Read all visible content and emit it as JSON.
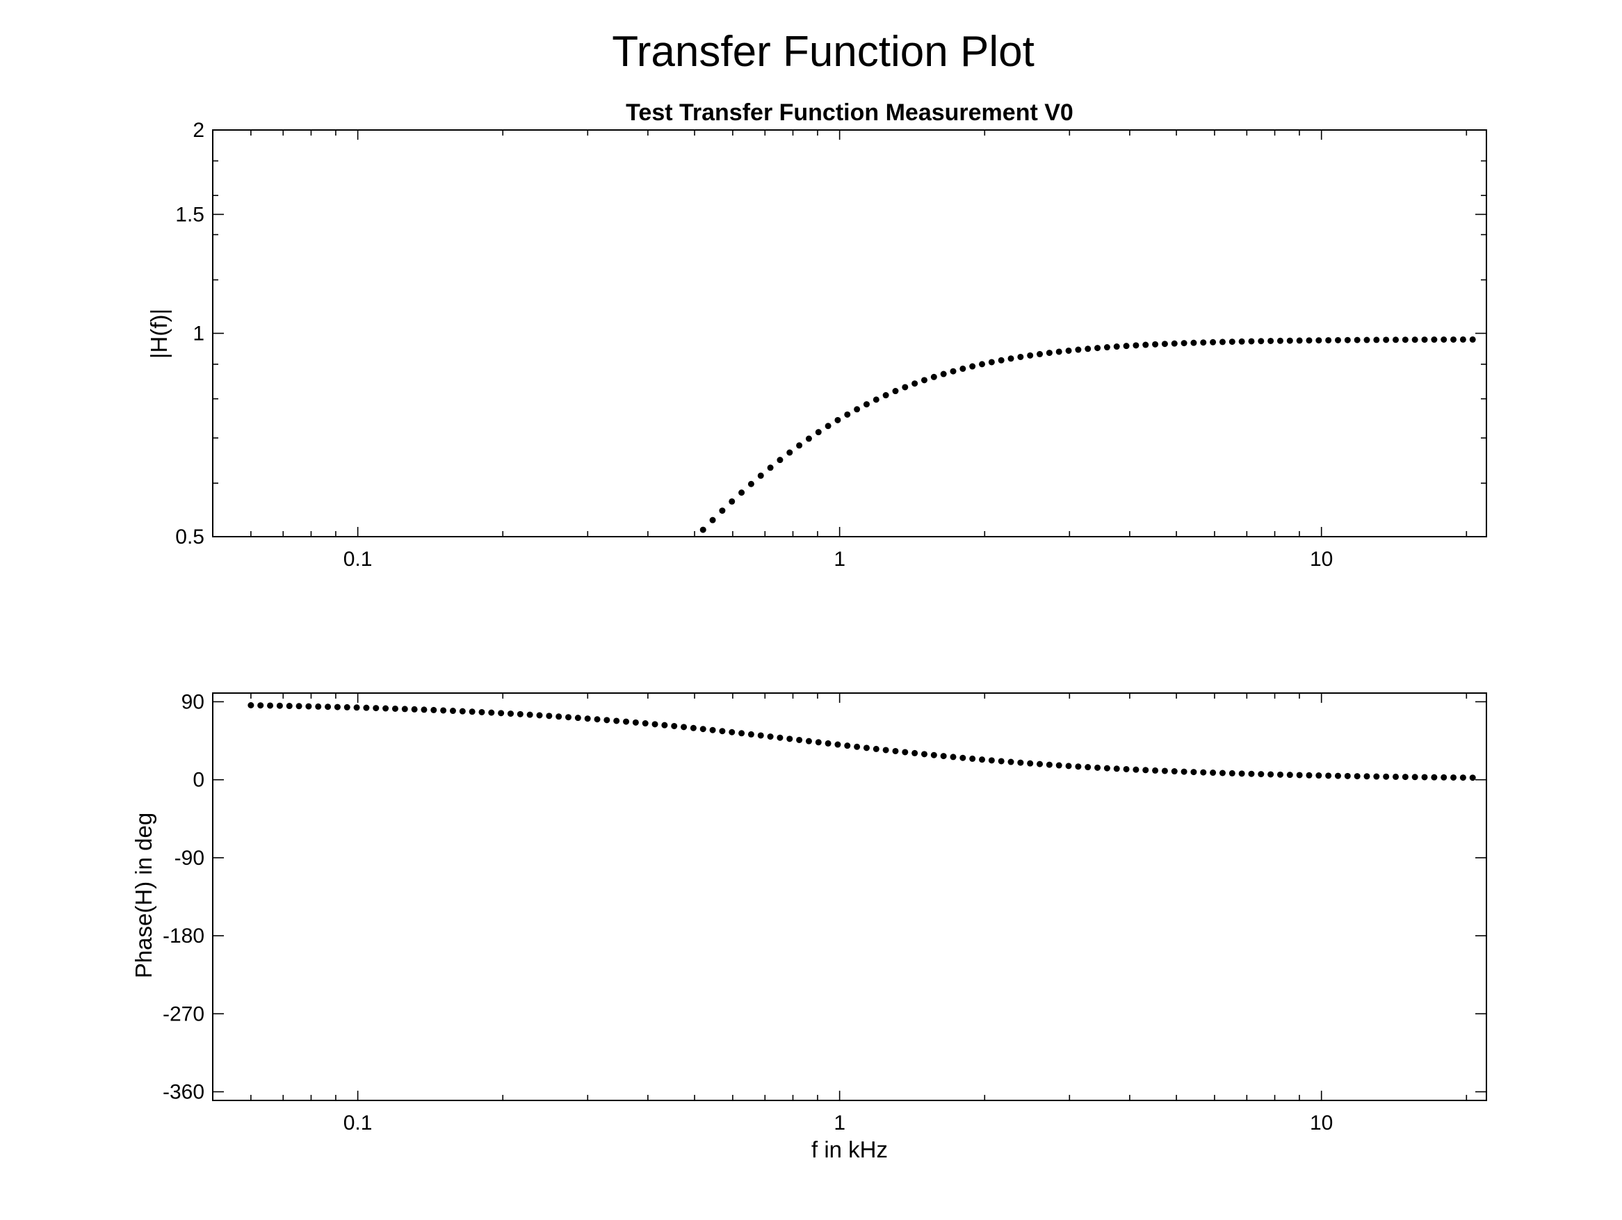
{
  "figure": {
    "title": "Transfer Function Plot"
  },
  "chart_data": [
    {
      "type": "scatter",
      "title": "Test Transfer Function Measurement V0",
      "xlabel": "",
      "ylabel": "|H(f)|",
      "xscale": "log",
      "yscale": "log",
      "xlim": [
        0.05,
        22
      ],
      "ylim": [
        0.5,
        2
      ],
      "xticks": [
        0.1,
        1,
        10
      ],
      "xtick_labels": [
        "0.1",
        "1",
        "10"
      ],
      "yticks": [
        0.5,
        1,
        1.5,
        2
      ],
      "ytick_labels": [
        "0.5",
        "1",
        "1.5",
        "2"
      ],
      "grid": false,
      "legend": "none",
      "marker_color": "#000000",
      "model": {
        "form": "highpass-1st-order",
        "fc_khz": 0.85,
        "gain": 0.98
      },
      "sampling": {
        "f_start_khz": 0.06,
        "f_stop_khz": 20.6,
        "points_per_decade": 50
      }
    },
    {
      "type": "scatter",
      "title": "",
      "xlabel": "f in kHz",
      "ylabel": "Phase(H) in deg",
      "xscale": "log",
      "yscale": "linear",
      "xlim": [
        0.05,
        22
      ],
      "ylim": [
        -370,
        100
      ],
      "xticks": [
        0.1,
        1,
        10
      ],
      "xtick_labels": [
        "0.1",
        "1",
        "10"
      ],
      "yticks": [
        90,
        0,
        -90,
        -180,
        -270,
        -360
      ],
      "ytick_labels": [
        "90",
        "0",
        "-90",
        "-180",
        "-270",
        "-360"
      ],
      "grid": false,
      "legend": "none",
      "marker_color": "#000000",
      "model": {
        "form": "highpass-1st-order-phase",
        "fc_khz": 0.85
      },
      "sampling": {
        "f_start_khz": 0.06,
        "f_stop_khz": 20.6,
        "points_per_decade": 50
      }
    }
  ]
}
